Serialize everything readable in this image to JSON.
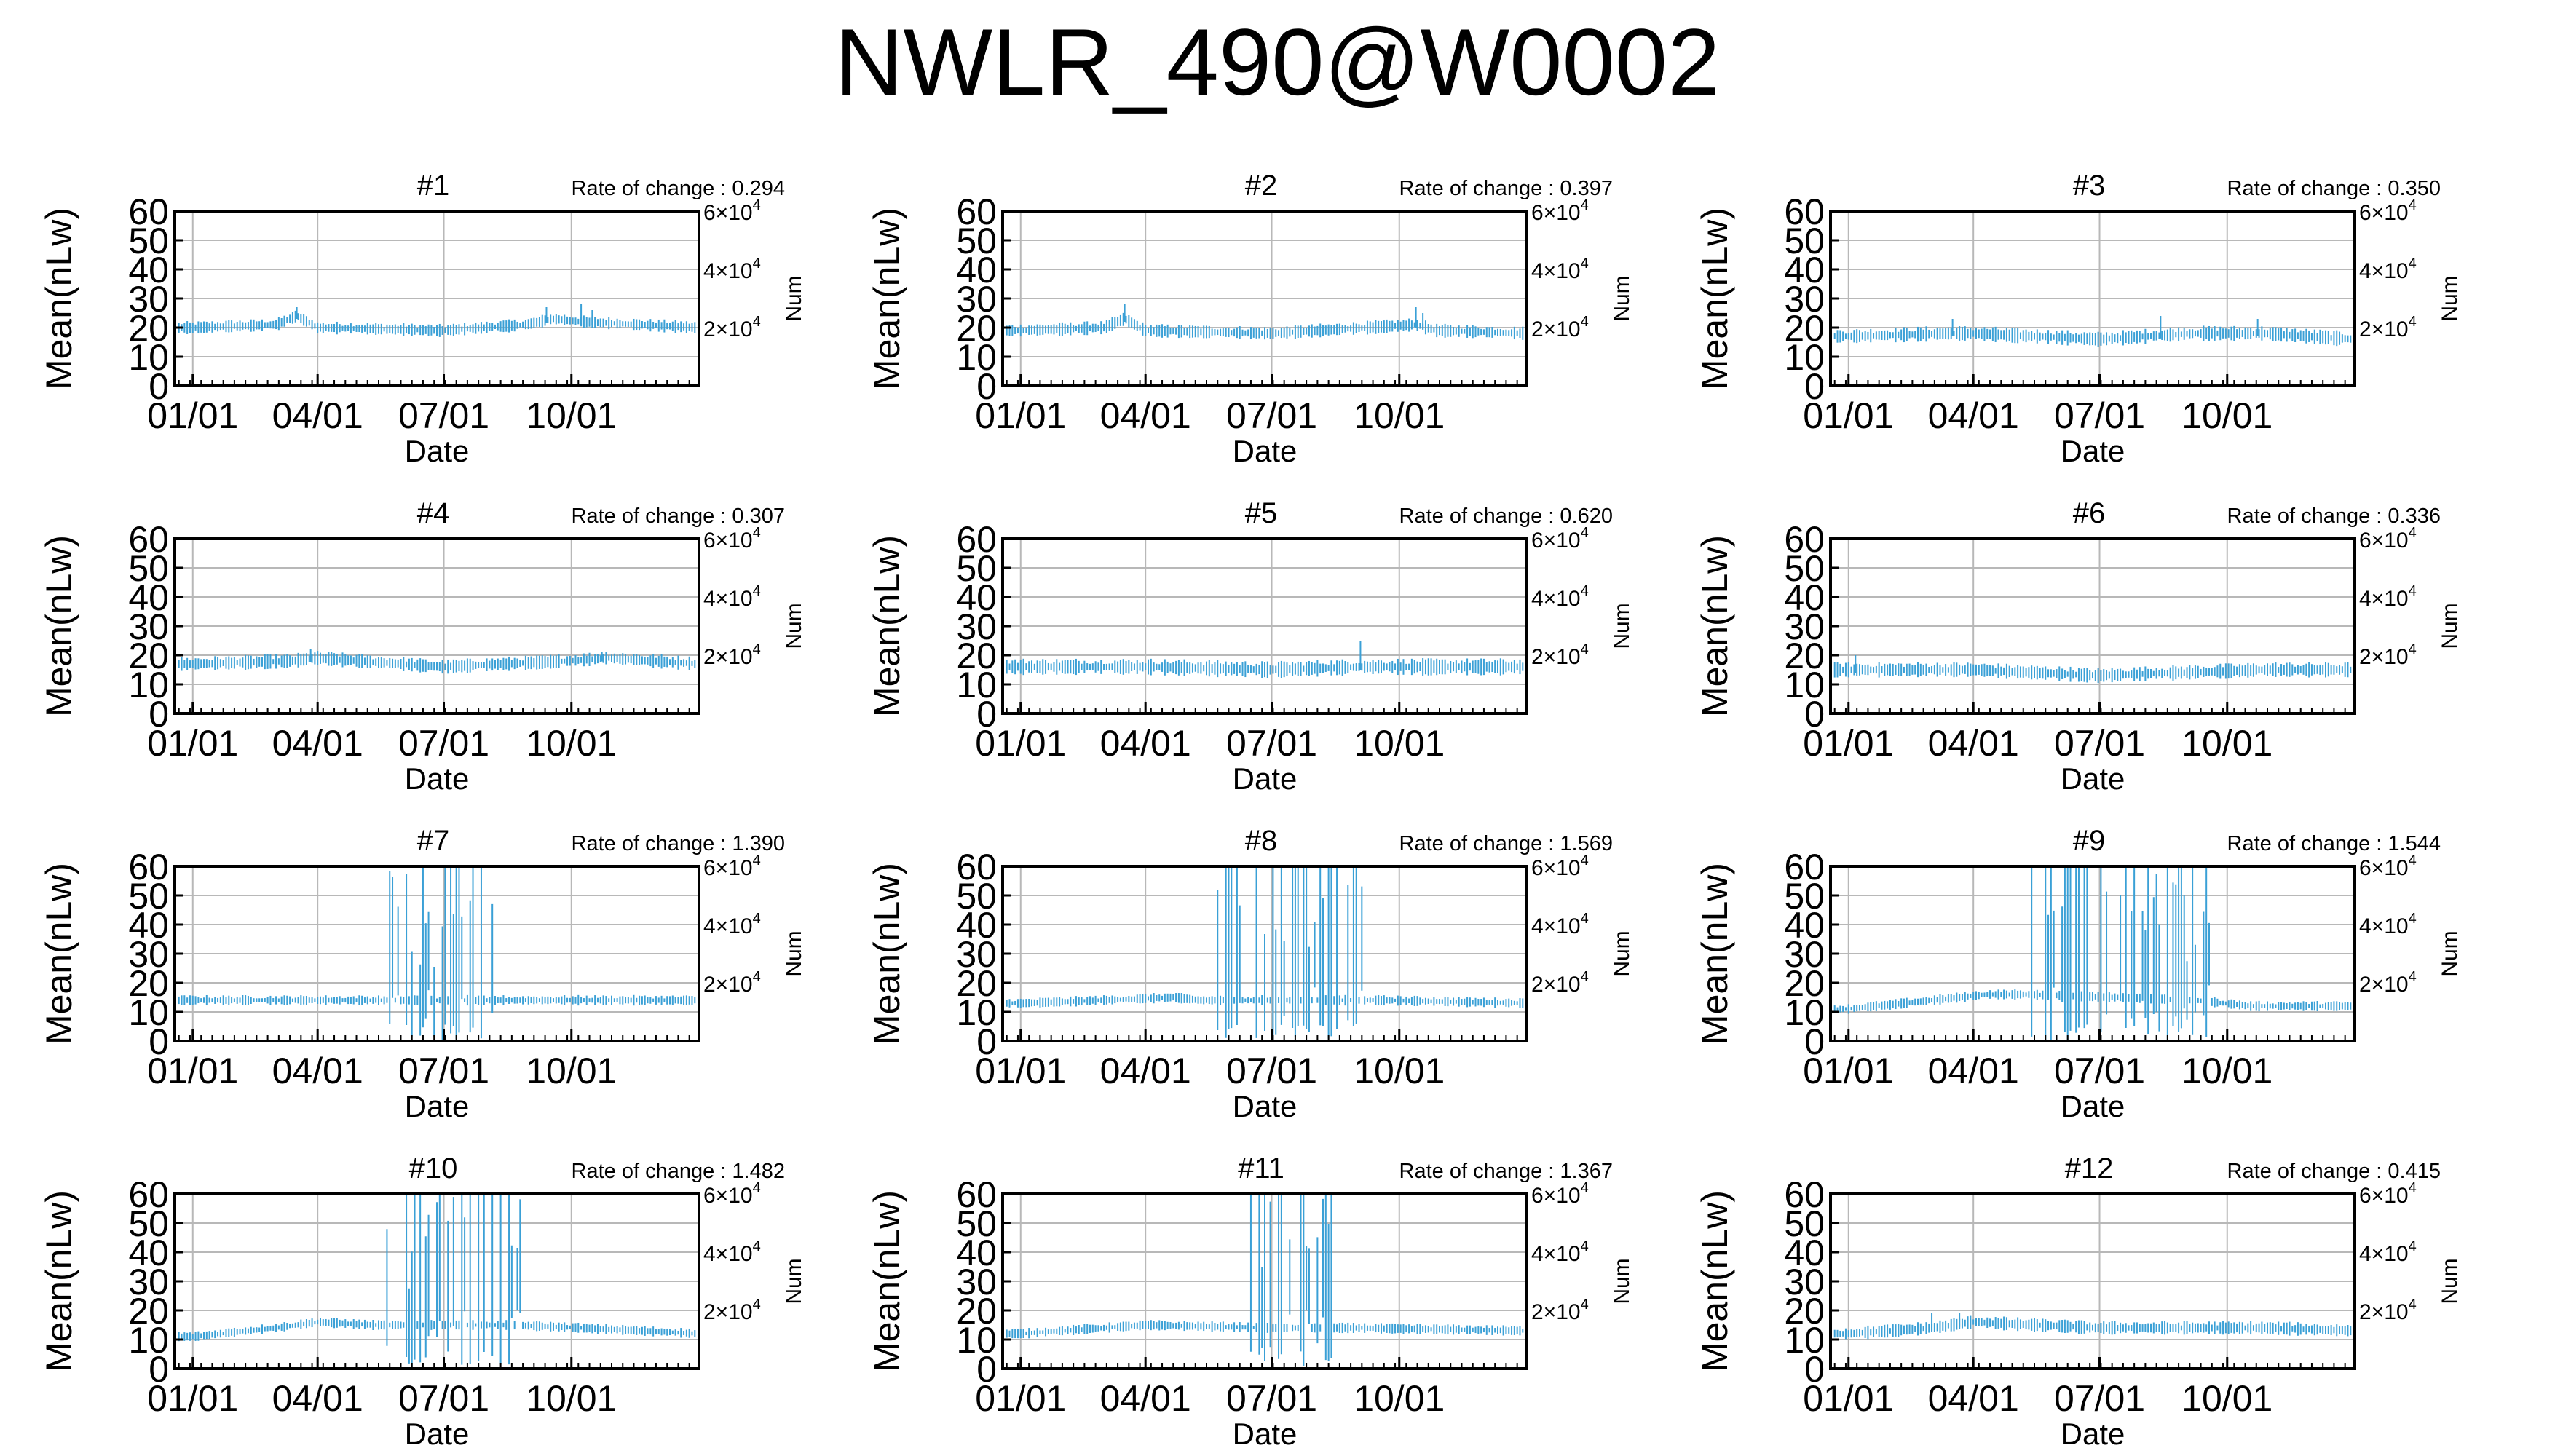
{
  "title": "NWLR_490@W0002",
  "style": {
    "series_color": "#3aa0d6",
    "grid_color": "#b8b8b8",
    "axis_color": "#000000"
  },
  "chart_common": {
    "type": "line",
    "xlabel": "Date",
    "ylabel": "Mean(nLw)",
    "y2label": "Num",
    "ylim": [
      0,
      60
    ],
    "yticks": [
      0,
      10,
      20,
      30,
      40,
      50,
      60
    ],
    "y2lim": [
      0,
      60000
    ],
    "y2ticks": [
      {
        "base": "2×10",
        "exp": "4"
      },
      {
        "base": "4×10",
        "exp": "4"
      },
      {
        "base": "6×10",
        "exp": "4"
      }
    ],
    "xlim_days": [
      -13,
      365
    ],
    "xticks": [
      {
        "label": "01/01",
        "day": 0
      },
      {
        "label": "04/01",
        "day": 90
      },
      {
        "label": "07/01",
        "day": 181
      },
      {
        "label": "10/01",
        "day": 273
      }
    ],
    "rate_prefix": "Rate of change : ",
    "grid": true,
    "series_style": "error bars"
  },
  "chart_data": [
    {
      "panel": "#1",
      "rate": "0.294",
      "profile": [
        [
          0,
          20
        ],
        [
          60,
          21
        ],
        [
          75,
          24
        ],
        [
          90,
          20
        ],
        [
          180,
          19
        ],
        [
          240,
          21
        ],
        [
          260,
          23
        ],
        [
          280,
          22
        ],
        [
          365,
          20
        ]
      ],
      "noise": 1.5,
      "spikes": [
        [
          75,
          27
        ],
        [
          255,
          27
        ],
        [
          280,
          28
        ],
        [
          288,
          26
        ]
      ],
      "anomaly": null
    },
    {
      "panel": "#2",
      "rate": "0.397",
      "profile": [
        [
          0,
          19
        ],
        [
          60,
          20
        ],
        [
          75,
          23
        ],
        [
          90,
          19
        ],
        [
          180,
          18
        ],
        [
          250,
          20
        ],
        [
          285,
          21
        ],
        [
          300,
          19
        ],
        [
          365,
          18
        ]
      ],
      "noise": 1.6,
      "spikes": [
        [
          75,
          28
        ],
        [
          285,
          27
        ],
        [
          290,
          25
        ]
      ],
      "anomaly": null
    },
    {
      "panel": "#3",
      "rate": "0.350",
      "profile": [
        [
          0,
          17
        ],
        [
          70,
          18
        ],
        [
          90,
          18
        ],
        [
          180,
          16
        ],
        [
          250,
          18
        ],
        [
          300,
          18
        ],
        [
          365,
          16
        ]
      ],
      "noise": 1.8,
      "spikes": [
        [
          75,
          23
        ],
        [
          225,
          24
        ],
        [
          295,
          23
        ]
      ],
      "anomaly": null
    },
    {
      "panel": "#4",
      "rate": "0.307",
      "profile": [
        [
          0,
          17
        ],
        [
          70,
          18
        ],
        [
          90,
          19
        ],
        [
          180,
          16
        ],
        [
          270,
          18
        ],
        [
          300,
          19
        ],
        [
          365,
          17
        ]
      ],
      "noise": 1.7,
      "spikes": [
        [
          85,
          22
        ],
        [
          295,
          21
        ]
      ],
      "anomaly": null
    },
    {
      "panel": "#5",
      "rate": "0.620",
      "profile": [
        [
          0,
          16
        ],
        [
          90,
          16
        ],
        [
          180,
          15
        ],
        [
          250,
          16
        ],
        [
          300,
          16
        ],
        [
          365,
          16
        ]
      ],
      "noise": 2.0,
      "spikes": [
        [
          245,
          25
        ]
      ],
      "anomaly": null
    },
    {
      "panel": "#6",
      "rate": "0.336",
      "profile": [
        [
          0,
          15
        ],
        [
          90,
          15
        ],
        [
          180,
          13
        ],
        [
          240,
          14
        ],
        [
          300,
          15
        ],
        [
          365,
          15
        ]
      ],
      "noise": 1.8,
      "spikes": [
        [
          5,
          20
        ]
      ],
      "anomaly": null
    },
    {
      "panel": "#7",
      "rate": "1.390",
      "profile": [
        [
          0,
          14
        ],
        [
          90,
          14
        ],
        [
          130,
          14
        ],
        [
          220,
          14
        ],
        [
          365,
          14
        ]
      ],
      "noise": 1.2,
      "spikes": [],
      "anomaly": [
        140,
        220
      ]
    },
    {
      "panel": "#8",
      "rate": "1.569",
      "profile": [
        [
          0,
          13
        ],
        [
          60,
          14
        ],
        [
          110,
          15
        ],
        [
          130,
          14
        ],
        [
          230,
          14
        ],
        [
          260,
          14
        ],
        [
          365,
          13
        ]
      ],
      "noise": 1.2,
      "spikes": [],
      "anomaly": [
        140,
        250
      ]
    },
    {
      "panel": "#9",
      "rate": "1.544",
      "profile": [
        [
          0,
          11
        ],
        [
          60,
          14
        ],
        [
          100,
          16
        ],
        [
          130,
          16
        ],
        [
          250,
          14
        ],
        [
          290,
          12
        ],
        [
          365,
          12
        ]
      ],
      "noise": 1.2,
      "spikes": [],
      "anomaly": [
        130,
        260
      ]
    },
    {
      "panel": "#10",
      "rate": "1.482",
      "profile": [
        [
          0,
          11
        ],
        [
          60,
          14
        ],
        [
          90,
          16
        ],
        [
          130,
          15
        ],
        [
          230,
          15
        ],
        [
          280,
          14
        ],
        [
          365,
          12
        ]
      ],
      "noise": 1.2,
      "spikes": [],
      "anomaly": [
        140,
        240
      ]
    },
    {
      "panel": "#11",
      "rate": "1.367",
      "profile": [
        [
          0,
          12
        ],
        [
          90,
          15
        ],
        [
          180,
          14
        ],
        [
          240,
          14
        ],
        [
          365,
          13
        ]
      ],
      "noise": 1.2,
      "spikes": [],
      "anomaly": [
        165,
        225
      ]
    },
    {
      "panel": "#12",
      "rate": "0.415",
      "profile": [
        [
          0,
          12
        ],
        [
          60,
          14
        ],
        [
          90,
          16
        ],
        [
          180,
          14
        ],
        [
          300,
          14
        ],
        [
          365,
          13
        ]
      ],
      "noise": 1.6,
      "spikes": [
        [
          60,
          19
        ],
        [
          80,
          19
        ]
      ],
      "anomaly": null
    }
  ]
}
